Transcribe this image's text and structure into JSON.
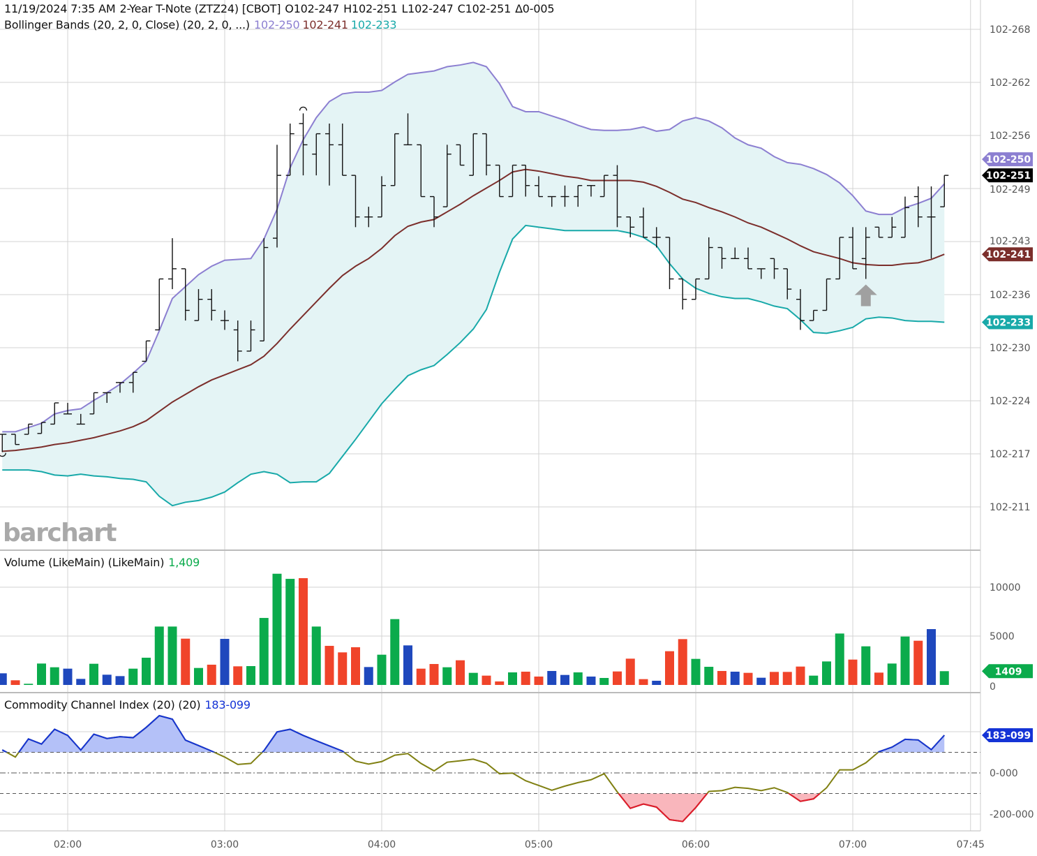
{
  "header": {
    "datetime": "11/19/2024 7:35 AM",
    "instrument": "2-Year T-Note (ZTZ24) [CBOT]",
    "open": "O102-247",
    "high": "H102-251",
    "low": "L102-247",
    "close": "C102-251",
    "change": "Δ0-005",
    "bb_label": "Bollinger Bands (20, 2, 0, Close)  (20, 2, 0, ...)",
    "bb_upper": "102-250",
    "bb_middle": "102-241",
    "bb_lower": "102-233"
  },
  "watermark": "barchart",
  "volume_panel": {
    "label": "Volume (LikeMain)  (LikeMain)",
    "value": "1,409"
  },
  "cci_panel": {
    "label": "Commodity Channel Index (20)  (20)",
    "value": "183-099"
  },
  "colors": {
    "bb_upper": "#8c7fd1",
    "bb_middle": "#7b2e2b",
    "bb_lower": "#18a9a9",
    "band_fill": "#e4f4f5",
    "vol_g": "#0bab4c",
    "vol_r": "#f0442a",
    "vol_b": "#1f48bd",
    "cci_neutral": "#808012",
    "cci_high": "#1433d6",
    "cci_low": "#e0182d",
    "cci_high_fill": "#b4c1f8",
    "cci_low_fill": "#f9b6bc",
    "last_price": "#000000",
    "grid": "#d3d3d3",
    "signal": "#a0a0a0"
  },
  "chart_data": {
    "type": "ohlc",
    "price_unit": "32nds above 102",
    "time_axis": {
      "ticks": [
        "02:00",
        "03:00",
        "04:00",
        "05:00",
        "06:00",
        "07:00",
        "07:45"
      ]
    },
    "price_axis": {
      "ticks": [
        {
          "label": "102-211",
          "value": 21.125
        },
        {
          "label": "102-217",
          "value": 21.75
        },
        {
          "label": "102-224",
          "value": 22.375
        },
        {
          "label": "102-230",
          "value": 23.0
        },
        {
          "label": "102-236",
          "value": 23.625
        },
        {
          "label": "102-243",
          "value": 24.25
        },
        {
          "label": "102-249",
          "value": 24.875
        },
        {
          "label": "102-256",
          "value": 25.5
        },
        {
          "label": "102-262",
          "value": 26.125
        },
        {
          "label": "102-268",
          "value": 26.75
        }
      ]
    },
    "time": [
      "01:35",
      "01:40",
      "01:45",
      "01:50",
      "01:55",
      "02:00",
      "02:05",
      "02:10",
      "02:15",
      "02:20",
      "02:25",
      "02:30",
      "02:35",
      "02:40",
      "02:45",
      "02:50",
      "02:55",
      "03:00",
      "03:05",
      "03:10",
      "03:15",
      "03:20",
      "03:25",
      "03:30",
      "03:35",
      "03:40",
      "03:45",
      "03:50",
      "03:55",
      "04:00",
      "04:05",
      "04:10",
      "04:15",
      "04:20",
      "04:25",
      "04:30",
      "04:35",
      "04:40",
      "04:45",
      "04:50",
      "04:55",
      "05:00",
      "05:05",
      "05:10",
      "05:15",
      "05:20",
      "05:25",
      "05:30",
      "05:35",
      "05:40",
      "05:45",
      "05:50",
      "05:55",
      "06:00",
      "06:05",
      "06:10",
      "06:15",
      "06:20",
      "06:25",
      "06:30",
      "06:35",
      "06:40",
      "06:45",
      "06:50",
      "06:55",
      "07:00",
      "07:05",
      "07:10",
      "07:15",
      "07:20",
      "07:25",
      "07:30",
      "07:35"
    ],
    "open": [
      21.98,
      21.98,
      21.98,
      21.99,
      22.1,
      22.22,
      22.1,
      22.22,
      22.47,
      22.59,
      22.59,
      22.84,
      23.21,
      23.81,
      23.93,
      23.32,
      23.57,
      23.32,
      23.21,
      22.96,
      23.08,
      24.29,
      25.03,
      25.64,
      25.28,
      25.52,
      25.39,
      25.03,
      24.54,
      24.54,
      24.91,
      25.39,
      25.39,
      24.78,
      24.66,
      25.39,
      25.03,
      25.52,
      25.15,
      24.78,
      25.15,
      24.91,
      24.78,
      24.78,
      24.78,
      24.91,
      24.78,
      25.03,
      24.54,
      24.54,
      24.3,
      24.3,
      23.81,
      23.57,
      23.81,
      24.18,
      24.05,
      24.05,
      23.93,
      24.05,
      23.93,
      23.57,
      23.32,
      23.44,
      23.81,
      24.3,
      24.05,
      24.42,
      24.3,
      24.3,
      24.78,
      24.54,
      24.66
    ],
    "high": [
      21.98,
      21.98,
      22.1,
      22.12,
      22.35,
      22.35,
      22.22,
      22.47,
      22.47,
      22.59,
      22.71,
      23.08,
      23.81,
      24.29,
      23.93,
      23.69,
      23.69,
      23.44,
      23.32,
      23.32,
      24.29,
      25.39,
      25.64,
      25.76,
      25.52,
      25.64,
      25.64,
      25.03,
      24.66,
      25.02,
      25.52,
      25.76,
      25.39,
      24.78,
      25.39,
      25.39,
      25.52,
      25.52,
      25.15,
      25.15,
      25.15,
      25.02,
      24.78,
      24.91,
      24.91,
      24.91,
      25.03,
      25.15,
      24.54,
      24.65,
      24.42,
      24.3,
      23.81,
      23.81,
      24.3,
      24.18,
      24.18,
      24.18,
      23.93,
      24.05,
      23.93,
      23.69,
      23.44,
      23.81,
      24.3,
      24.42,
      24.42,
      24.42,
      24.54,
      24.78,
      24.9,
      24.9,
      25.03
    ],
    "low": [
      21.77,
      21.86,
      21.98,
      21.99,
      22.1,
      22.22,
      22.1,
      22.22,
      22.35,
      22.47,
      22.47,
      22.84,
      23.21,
      23.69,
      23.32,
      23.32,
      23.32,
      23.21,
      22.84,
      22.96,
      23.08,
      24.18,
      25.03,
      25.03,
      25.03,
      24.91,
      25.03,
      24.42,
      24.42,
      24.54,
      24.91,
      25.39,
      24.78,
      24.42,
      24.66,
      25.15,
      25.03,
      25.03,
      24.78,
      24.78,
      24.78,
      24.78,
      24.66,
      24.66,
      24.66,
      24.78,
      24.78,
      24.42,
      24.3,
      24.3,
      24.18,
      23.69,
      23.45,
      23.57,
      23.81,
      23.93,
      24.05,
      23.93,
      23.81,
      23.81,
      23.57,
      23.21,
      23.32,
      23.44,
      23.81,
      23.93,
      23.81,
      24.3,
      24.3,
      24.3,
      24.42,
      24.05,
      24.66
    ],
    "close": [
      21.98,
      21.86,
      22.1,
      22.12,
      22.35,
      22.22,
      22.1,
      22.47,
      22.47,
      22.59,
      22.71,
      23.08,
      23.81,
      23.93,
      23.44,
      23.57,
      23.44,
      23.32,
      22.96,
      23.21,
      24.18,
      25.03,
      25.52,
      25.39,
      25.52,
      25.39,
      25.03,
      24.54,
      24.54,
      24.91,
      25.52,
      25.39,
      24.78,
      24.54,
      25.28,
      25.15,
      25.52,
      25.15,
      24.78,
      25.15,
      24.91,
      24.78,
      24.78,
      24.78,
      24.91,
      24.91,
      25.03,
      24.54,
      24.42,
      24.3,
      24.3,
      23.81,
      23.57,
      23.81,
      24.18,
      24.05,
      24.05,
      23.93,
      23.93,
      23.93,
      23.69,
      23.32,
      23.44,
      23.81,
      24.3,
      23.93,
      24.3,
      24.3,
      24.42,
      24.65,
      24.54,
      24.54,
      25.03
    ],
    "bollinger": {
      "upper": [
        22.01,
        22.01,
        22.06,
        22.11,
        22.22,
        22.26,
        22.28,
        22.38,
        22.47,
        22.57,
        22.7,
        22.84,
        23.2,
        23.58,
        23.72,
        23.86,
        23.96,
        24.03,
        24.04,
        24.05,
        24.28,
        24.63,
        25.12,
        25.45,
        25.71,
        25.9,
        25.99,
        26.01,
        26.01,
        26.03,
        26.13,
        26.22,
        26.24,
        26.26,
        26.31,
        26.33,
        26.36,
        26.31,
        26.11,
        25.84,
        25.78,
        25.78,
        25.73,
        25.68,
        25.62,
        25.57,
        25.56,
        25.56,
        25.57,
        25.6,
        25.55,
        25.57,
        25.67,
        25.71,
        25.67,
        25.59,
        25.47,
        25.39,
        25.35,
        25.25,
        25.18,
        25.16,
        25.11,
        25.04,
        24.94,
        24.79,
        24.61,
        24.57,
        24.57,
        24.65,
        24.7,
        24.76,
        24.93
      ],
      "middle": [
        21.78,
        21.79,
        21.81,
        21.83,
        21.86,
        21.88,
        21.91,
        21.94,
        21.98,
        22.02,
        22.07,
        22.14,
        22.25,
        22.36,
        22.45,
        22.54,
        22.62,
        22.68,
        22.74,
        22.8,
        22.9,
        23.05,
        23.22,
        23.38,
        23.54,
        23.7,
        23.85,
        23.96,
        24.05,
        24.17,
        24.32,
        24.43,
        24.48,
        24.51,
        24.6,
        24.69,
        24.79,
        24.88,
        24.97,
        25.07,
        25.1,
        25.08,
        25.05,
        25.02,
        25.0,
        24.97,
        24.97,
        24.97,
        24.97,
        24.95,
        24.9,
        24.83,
        24.75,
        24.71,
        24.65,
        24.6,
        24.54,
        24.47,
        24.42,
        24.35,
        24.28,
        24.2,
        24.13,
        24.09,
        24.05,
        24.0,
        23.98,
        23.97,
        23.97,
        23.99,
        24.0,
        24.04,
        24.1
      ],
      "lower": [
        21.56,
        21.56,
        21.56,
        21.54,
        21.5,
        21.49,
        21.51,
        21.49,
        21.48,
        21.46,
        21.45,
        21.42,
        21.25,
        21.14,
        21.18,
        21.2,
        21.24,
        21.3,
        21.41,
        21.51,
        21.54,
        21.51,
        21.41,
        21.42,
        21.42,
        21.52,
        21.72,
        21.92,
        22.13,
        22.34,
        22.51,
        22.67,
        22.74,
        22.79,
        22.92,
        23.06,
        23.22,
        23.45,
        23.89,
        24.28,
        24.44,
        24.42,
        24.4,
        24.38,
        24.38,
        24.38,
        24.38,
        24.38,
        24.35,
        24.3,
        24.2,
        23.99,
        23.81,
        23.7,
        23.64,
        23.6,
        23.58,
        23.58,
        23.54,
        23.49,
        23.46,
        23.33,
        23.18,
        23.17,
        23.2,
        23.24,
        23.34,
        23.36,
        23.35,
        23.32,
        23.31,
        23.31,
        23.3
      ]
    },
    "volume": [
      1190,
      476,
      119,
      2190,
      1809,
      1666,
      619,
      2166,
      1047,
      904,
      1666,
      2785,
      5974,
      5974,
      4736,
      1737,
      2071,
      4712,
      1904,
      1928,
      6854,
      11376,
      10853,
      10924,
      5974,
      3998,
      3332,
      3856,
      1833,
      3094,
      6735,
      4046,
      1666,
      2142,
      1809,
      2523,
      1238,
      952,
      357,
      1285,
      1357,
      857,
      1428,
      1023,
      1285,
      857,
      714,
      1380,
      2689,
      595,
      428,
      3451,
      4689,
      2666,
      1856,
      1428,
      1357,
      1238,
      738,
      1333,
      1333,
      1880,
      952,
      2404,
      5260,
      2594,
      3951,
      1261,
      2190,
      4950,
      4522,
      5712,
      1409
    ],
    "volume_color": [
      "b",
      "r",
      "g",
      "g",
      "g",
      "b",
      "b",
      "g",
      "b",
      "b",
      "g",
      "g",
      "g",
      "g",
      "r",
      "g",
      "r",
      "b",
      "r",
      "g",
      "g",
      "g",
      "g",
      "r",
      "g",
      "r",
      "r",
      "r",
      "b",
      "g",
      "g",
      "b",
      "r",
      "r",
      "g",
      "r",
      "g",
      "r",
      "r",
      "g",
      "r",
      "r",
      "b",
      "b",
      "g",
      "b",
      "g",
      "r",
      "r",
      "r",
      "b",
      "r",
      "r",
      "g",
      "g",
      "r",
      "b",
      "r",
      "b",
      "r",
      "r",
      "r",
      "g",
      "g",
      "g",
      "r",
      "g",
      "r",
      "g",
      "g",
      "r",
      "b",
      "g"
    ],
    "volume_axis": {
      "ticks": [
        {
          "label": "0",
          "value": 0
        },
        {
          "label": "5000",
          "value": 5000
        },
        {
          "label": "10000",
          "value": 10000
        }
      ]
    },
    "cci": [
      112,
      77,
      165,
      140,
      212,
      182,
      111,
      188,
      167,
      176,
      171,
      221,
      278,
      261,
      159,
      133,
      106,
      77,
      41,
      46,
      108,
      199,
      212,
      182,
      156,
      131,
      106,
      57,
      43,
      55,
      86,
      94,
      46,
      10,
      52,
      59,
      67,
      47,
      -4,
      -1,
      -38,
      -61,
      -84,
      -64,
      -47,
      -33,
      -4,
      -92,
      -172,
      -151,
      -166,
      -227,
      -236,
      -168,
      -90,
      -86,
      -70,
      -75,
      -86,
      -72,
      -95,
      -138,
      -126,
      -72,
      15,
      15,
      49,
      103,
      125,
      163,
      160,
      113,
      183.1
    ],
    "cci_axis": {
      "ticks": [
        {
          "label": "0-000",
          "value": 0
        },
        {
          "label": "-200-000",
          "value": -200
        }
      ],
      "levels": [
        100,
        0,
        -100
      ],
      "grid": [
        200,
        -200
      ]
    },
    "markers": [
      {
        "type": "arc-top",
        "time": "03:30"
      },
      {
        "type": "arc-bottom",
        "time": "01:35"
      },
      {
        "type": "arrow-up",
        "time": "07:05"
      }
    ],
    "last_tags": {
      "close": "102-251",
      "upper": "102-250",
      "middle": "102-241",
      "lower": "102-233",
      "volume": "1409",
      "cci": "183-099"
    },
    "grid": true
  }
}
